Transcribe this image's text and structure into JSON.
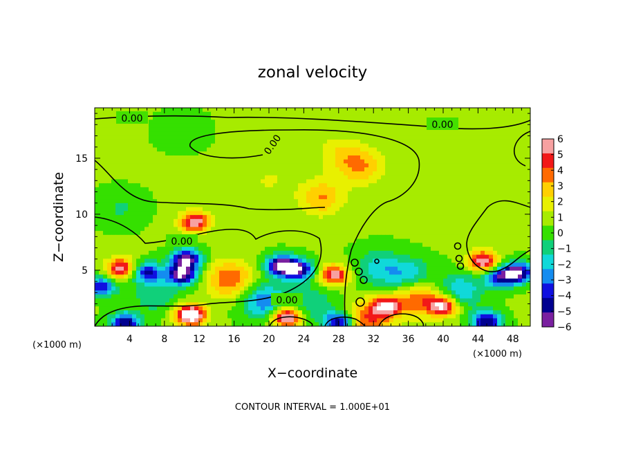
{
  "chart_data": {
    "type": "heatmap",
    "title": "zonal velocity",
    "xlabel": "X−coordinate",
    "ylabel": "Z−coordinate",
    "x_unit_label": "(×1000 m)",
    "x_unit_label_right": "(×1000 m)",
    "x_range": [
      0,
      50
    ],
    "y_range": [
      0,
      19.5
    ],
    "x_ticks": [
      "4",
      "8",
      "12",
      "16",
      "20",
      "24",
      "28",
      "32",
      "36",
      "40",
      "44",
      "48"
    ],
    "y_ticks": [
      "5",
      "10",
      "15"
    ],
    "colorbar_range": [
      -6,
      6
    ],
    "colorbar_ticks": [
      "6",
      "5",
      "4",
      "3",
      "2",
      "1",
      "0",
      "−1",
      "−2",
      "−3",
      "−4",
      "−5",
      "−6"
    ],
    "colorbar_colors": [
      "#f7a1a1",
      "#f21818",
      "#ff6a00",
      "#ffd000",
      "#e8f000",
      "#a7eb00",
      "#35e000",
      "#10d07a",
      "#10d9d9",
      "#148cf0",
      "#1010e0",
      "#000090",
      "#7a20a0"
    ],
    "contour_labels": [
      "0.00",
      "0.00",
      "0.00",
      "0.00",
      "0.00"
    ],
    "footer": "CONTOUR INTERVAL = 1.000E+01",
    "features": [
      {
        "x": 21.5,
        "z": 5.4,
        "v": -8
      },
      {
        "x": 10.5,
        "z": 6.0,
        "v": -7
      },
      {
        "x": 10.0,
        "z": 4.6,
        "v": -7
      },
      {
        "x": 48.5,
        "z": 4.8,
        "v": -7
      },
      {
        "x": 11.0,
        "z": 1.0,
        "v": 8
      },
      {
        "x": 22.0,
        "z": 0.8,
        "v": 7
      },
      {
        "x": 3.5,
        "z": 0.3,
        "v": -6
      },
      {
        "x": 28.0,
        "z": 0.3,
        "v": -6
      },
      {
        "x": 45.0,
        "z": 0.4,
        "v": -6
      },
      {
        "x": 11.5,
        "z": 9.3,
        "v": 6
      },
      {
        "x": 3.0,
        "z": 5.2,
        "v": 5.5
      },
      {
        "x": 27.5,
        "z": 4.6,
        "v": 5.5
      },
      {
        "x": 44.5,
        "z": 5.8,
        "v": 6
      },
      {
        "x": 40.0,
        "z": 1.8,
        "v": 6
      },
      {
        "x": 33.5,
        "z": 1.8,
        "v": 5
      },
      {
        "x": 15.5,
        "z": 4.2,
        "v": 4
      },
      {
        "x": 37.0,
        "z": 2.5,
        "v": 4
      },
      {
        "x": 31.5,
        "z": 0.6,
        "v": 4
      },
      {
        "x": 19.5,
        "z": 2.2,
        "v": -4
      },
      {
        "x": 23.5,
        "z": 5.0,
        "v": -6
      },
      {
        "x": 46.5,
        "z": 4.3,
        "v": -5
      },
      {
        "x": 0.7,
        "z": 3.5,
        "v": -5
      },
      {
        "x": 6.0,
        "z": 4.8,
        "v": -5
      },
      {
        "x": 36.0,
        "z": 4.5,
        "v": -3
      },
      {
        "x": 32.5,
        "z": 5.2,
        "v": -2.5
      },
      {
        "x": 26.0,
        "z": 11.5,
        "v": 3
      },
      {
        "x": 30.5,
        "z": 14.3,
        "v": 3
      },
      {
        "x": 28.0,
        "z": 15.5,
        "v": 1.5
      },
      {
        "x": 20.0,
        "z": 13.0,
        "v": 1.0
      },
      {
        "x": 10.0,
        "z": 17.5,
        "v": -1.0
      },
      {
        "x": 3.0,
        "z": 10.5,
        "v": -1.2
      },
      {
        "x": 7.0,
        "z": 2.8,
        "v": -2.0
      },
      {
        "x": 42.0,
        "z": 3.2,
        "v": -3
      },
      {
        "x": 25.0,
        "z": 2.0,
        "v": -2
      }
    ]
  }
}
